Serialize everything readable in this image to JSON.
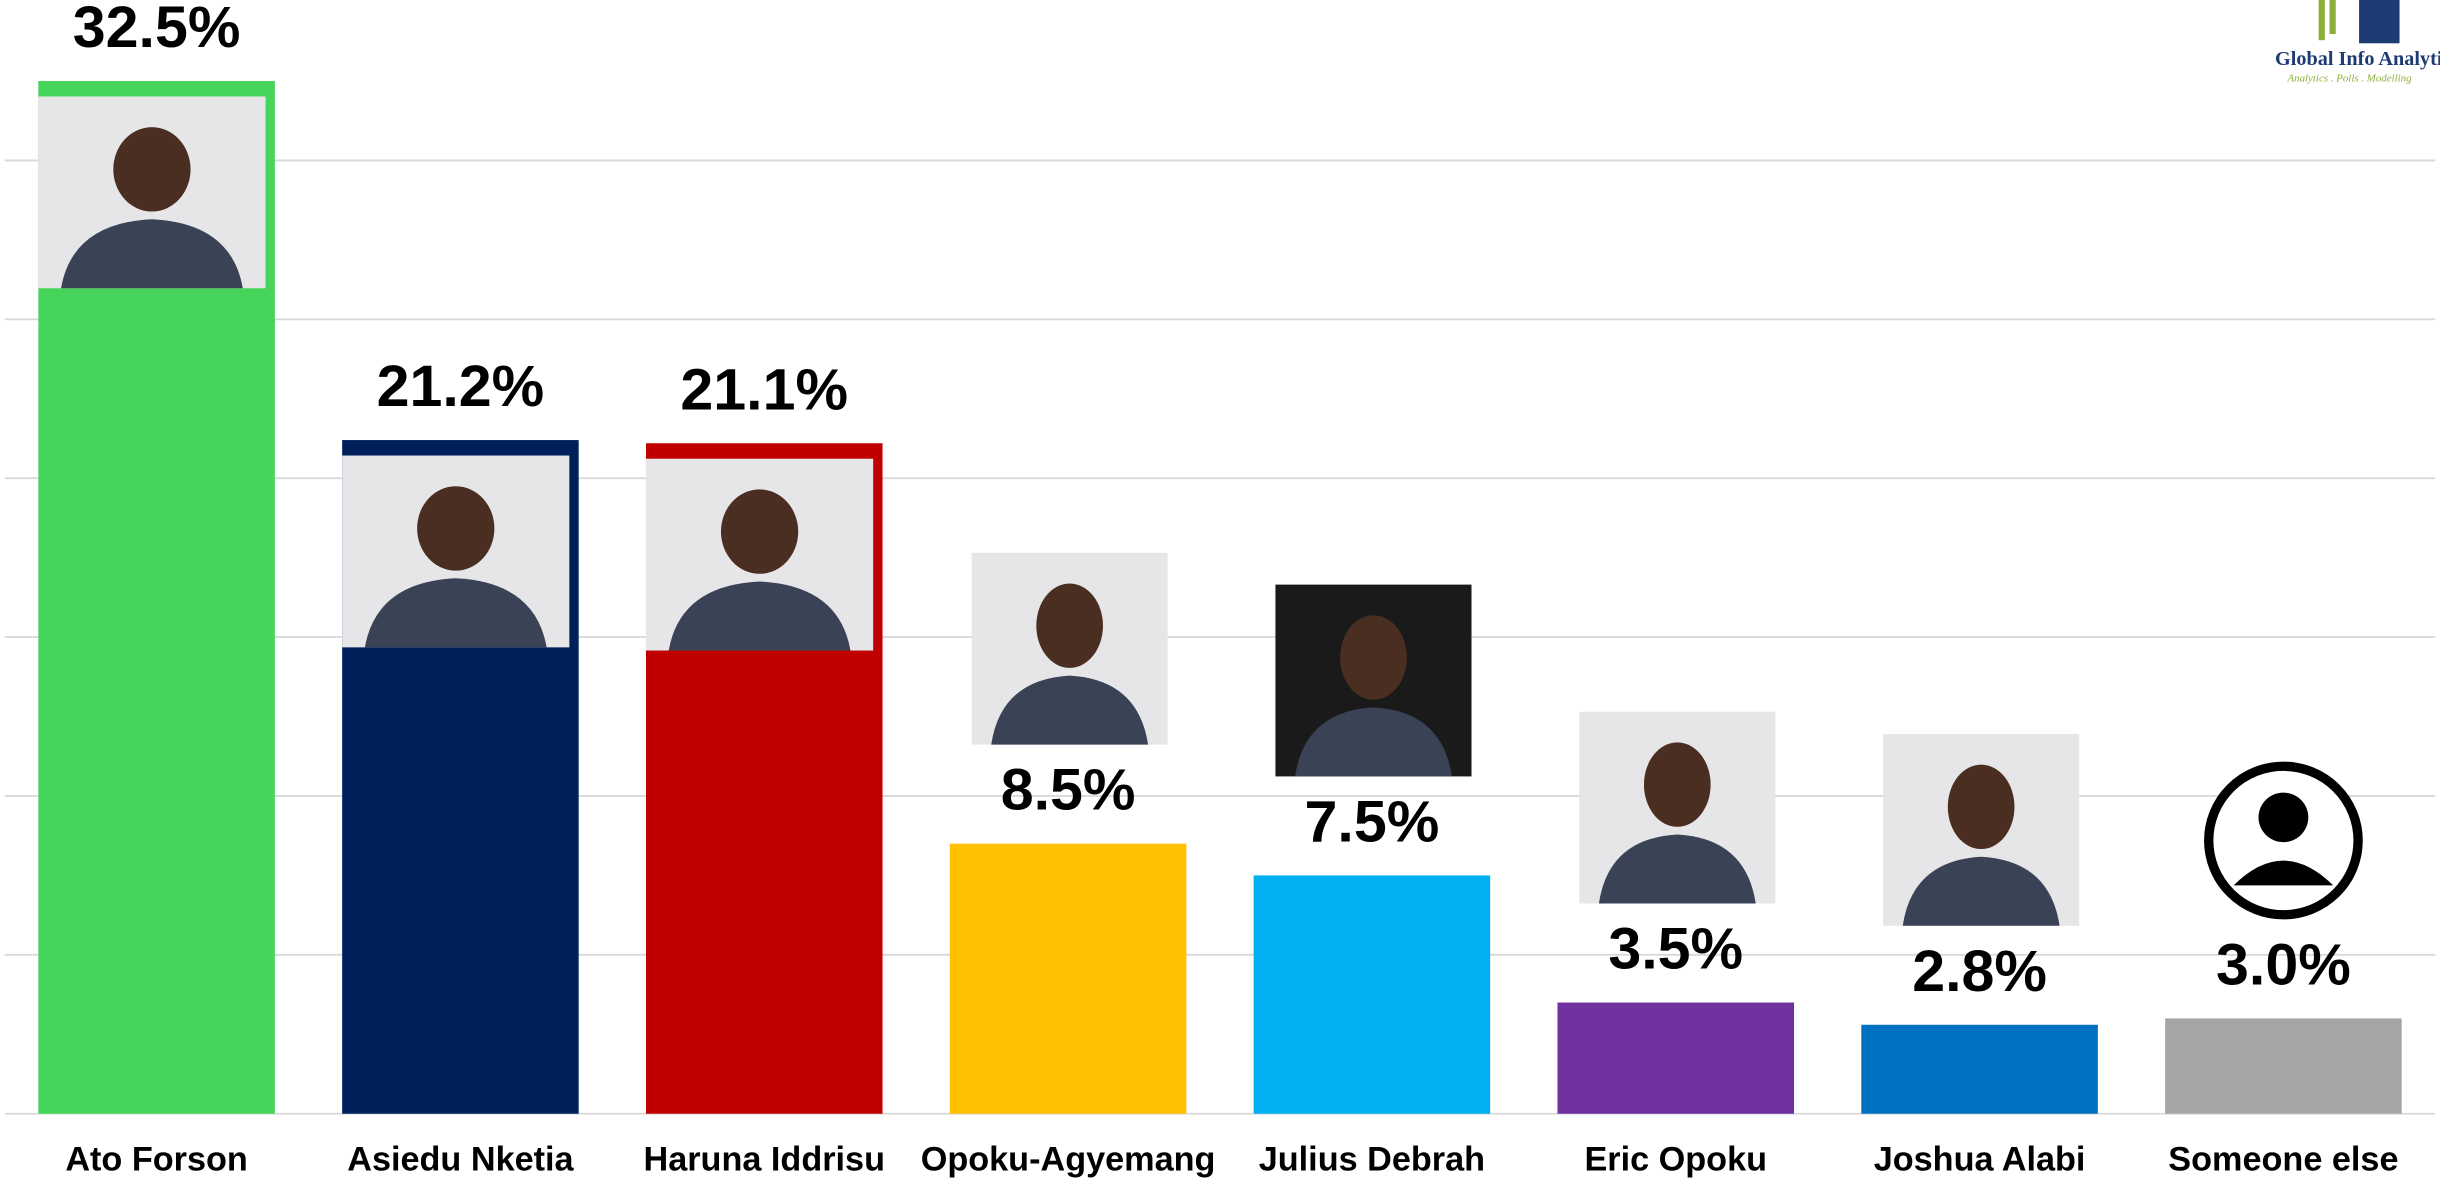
{
  "chart_data": {
    "type": "bar",
    "categories": [
      "Ato Forson",
      "Asiedu Nketia",
      "Haruna Iddrisu",
      "Opoku-Agyemang",
      "Julius Debrah",
      "Eric Opoku",
      "Joshua Alabi",
      "Someone else"
    ],
    "values": [
      32.5,
      21.2,
      21.1,
      8.5,
      7.5,
      3.5,
      2.8,
      3.0
    ],
    "value_labels": [
      "32.5%",
      "21.2%",
      "21.1%",
      "8.5%",
      "7.5%",
      "3.5%",
      "2.8%",
      "3.0%"
    ],
    "colors": [
      "#47d45a",
      "#00205b",
      "#c00000",
      "#ffc000",
      "#00b0f0",
      "#7030a0",
      "#0070c0",
      "#a5a5a5"
    ],
    "ylim": [
      0,
      35
    ],
    "yticks": [
      0,
      5,
      10,
      15,
      20,
      25,
      30
    ],
    "grid": true
  },
  "logo": {
    "name": "Global Info Analytics",
    "tagline": "Analytics . Polls . Modelling"
  }
}
